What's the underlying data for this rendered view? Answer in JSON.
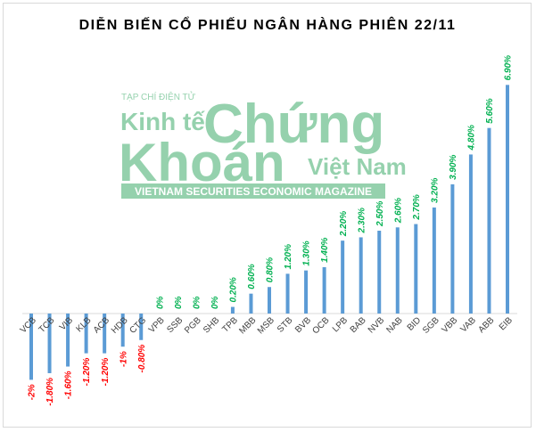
{
  "chart_data": {
    "type": "bar",
    "title": "DIỄN BIẾN CỔ PHIẾU NGÂN HÀNG PHIÊN 22/11",
    "categories": [
      "VCB",
      "TCB",
      "VIB",
      "KLB",
      "ACB",
      "HDB",
      "CTG",
      "VPB",
      "SSB",
      "PGB",
      "SHB",
      "TPB",
      "MBB",
      "MSB",
      "STB",
      "BVB",
      "OCB",
      "LPB",
      "BAB",
      "NVB",
      "NAB",
      "BID",
      "SGB",
      "VBB",
      "VAB",
      "ABB",
      "EIB"
    ],
    "values": [
      -2,
      -1.8,
      -1.6,
      -1.2,
      -1.2,
      -1,
      -0.8,
      0,
      0,
      0,
      0,
      0.2,
      0.6,
      0.8,
      1.2,
      1.3,
      1.4,
      2.2,
      2.3,
      2.5,
      2.6,
      2.7,
      3.2,
      3.9,
      4.8,
      5.6,
      6.9
    ],
    "value_labels": [
      "-2%",
      "-1.80%",
      "-1.60%",
      "-1.20%",
      "-1.20%",
      "-1%",
      "-0.80%",
      "0%",
      "0%",
      "0%",
      "0%",
      "0.20%",
      "0.60%",
      "0.80%",
      "1.20%",
      "1.30%",
      "1.40%",
      "2.20%",
      "2.30%",
      "2.50%",
      "2.60%",
      "2.70%",
      "3.20%",
      "3.90%",
      "4.80%",
      "5.60%",
      "6.90%"
    ],
    "color": "#5b9bd5",
    "positive_label_color": "#00b050",
    "negative_label_color": "#ff0000",
    "watermark": [
      "TẠP CHÍ ĐIỆN TỬ",
      "Kinh tế",
      "Chứng",
      "Khoán",
      "Việt Nam",
      "VIETNAM SECURITIES ECONOMIC MAGAZINE"
    ]
  }
}
